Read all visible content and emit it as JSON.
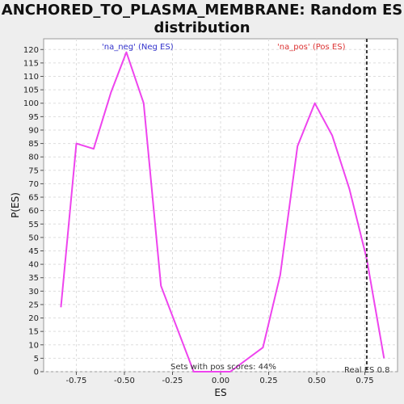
{
  "chart_data": {
    "type": "line",
    "title_line1": "ANCHORED_TO_PLASMA_MEMBRANE: Random ES",
    "title_line2": "distribution",
    "xlabel": "ES",
    "ylabel": "P(ES)",
    "xlim": [
      -0.92,
      0.92
    ],
    "ylim": [
      0,
      124
    ],
    "x_ticks": [
      -0.75,
      -0.5,
      -0.25,
      0.0,
      0.25,
      0.5,
      0.75
    ],
    "x_tick_labels": [
      "-0.75",
      "-0.50",
      "-0.25",
      "0.00",
      "0.25",
      "0.50",
      "0.75"
    ],
    "y_ticks": [
      0,
      5,
      10,
      15,
      20,
      25,
      30,
      35,
      40,
      45,
      50,
      55,
      60,
      65,
      70,
      75,
      80,
      85,
      90,
      95,
      100,
      105,
      110,
      115,
      120
    ],
    "grid": true,
    "line_color": "#ee44ee",
    "series": [
      {
        "x": [
          -0.83,
          -0.75,
          -0.66,
          -0.57,
          -0.49,
          -0.4,
          -0.31,
          -0.14,
          0.05,
          0.22,
          0.31,
          0.4,
          0.49,
          0.58,
          0.67,
          0.76,
          0.85
        ],
        "values": [
          24,
          85,
          83,
          104,
          119,
          100,
          32,
          0,
          0,
          9,
          36,
          84,
          100,
          88,
          68,
          42,
          5
        ]
      }
    ],
    "real_es": 0.76,
    "real_es_label": "Real ES 0.8",
    "annotations": {
      "neg_label": "'na_neg' (Neg ES)",
      "neg_color": "#3333cc",
      "pos_label": "'na_pos' (Pos ES)",
      "pos_color": "#dd3333",
      "footer": "Sets with pos scores: 44%"
    }
  }
}
